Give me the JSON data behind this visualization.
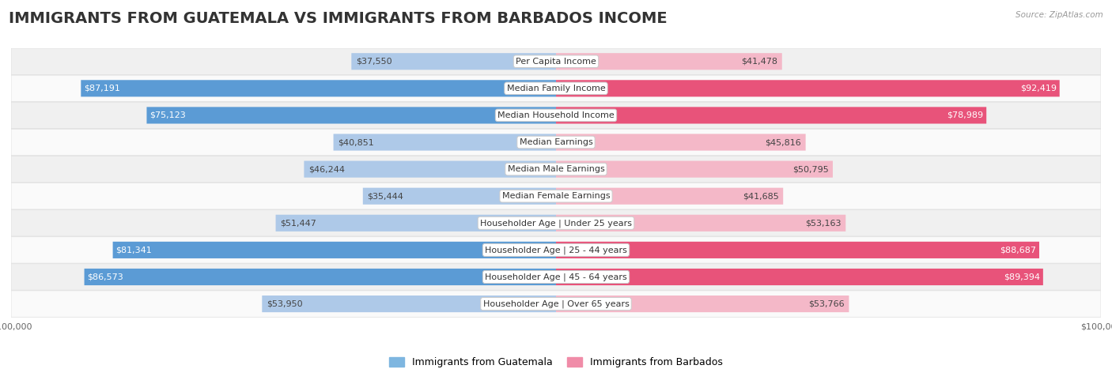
{
  "title": "IMMIGRANTS FROM GUATEMALA VS IMMIGRANTS FROM BARBADOS INCOME",
  "source": "Source: ZipAtlas.com",
  "categories": [
    "Per Capita Income",
    "Median Family Income",
    "Median Household Income",
    "Median Earnings",
    "Median Male Earnings",
    "Median Female Earnings",
    "Householder Age | Under 25 years",
    "Householder Age | 25 - 44 years",
    "Householder Age | 45 - 64 years",
    "Householder Age | Over 65 years"
  ],
  "guatemala_values": [
    37550,
    87191,
    75123,
    40851,
    46244,
    35444,
    51447,
    81341,
    86573,
    53950
  ],
  "barbados_values": [
    41478,
    92419,
    78989,
    45816,
    50795,
    41685,
    53163,
    88687,
    89394,
    53766
  ],
  "max_value": 100000,
  "guatemala_color_light": "#aec9e8",
  "guatemala_color_dark": "#5b9bd5",
  "barbados_color_light": "#f4b8c8",
  "barbados_color_dark": "#e8537a",
  "guatemala_label": "Immigrants from Guatemala",
  "barbados_label": "Immigrants from Barbados",
  "legend_guatemala_color": "#7eb6e0",
  "legend_barbados_color": "#f08ca8",
  "bar_height": 0.62,
  "background_color": "#ffffff",
  "row_color_odd": "#f0f0f0",
  "row_color_even": "#fafafa",
  "title_fontsize": 14,
  "label_fontsize": 8,
  "value_fontsize": 8,
  "dark_threshold": 65000
}
